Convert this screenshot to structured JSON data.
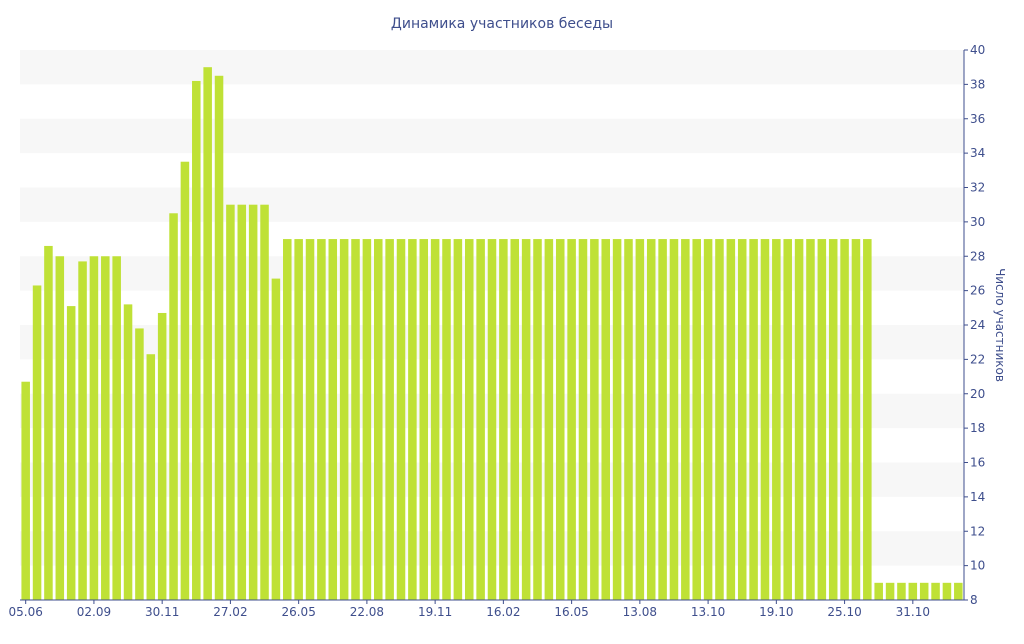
{
  "chart_data": {
    "type": "bar",
    "title": "Динамика участников беседы",
    "xlabel": "",
    "ylabel": "Число участников",
    "ylim": [
      8,
      40
    ],
    "yticks": [
      8,
      10,
      12,
      14,
      16,
      18,
      20,
      22,
      24,
      26,
      28,
      30,
      32,
      34,
      36,
      38,
      40
    ],
    "y_axis_side": "right",
    "grid": "alternating horizontal bands",
    "colors": {
      "bar": "#bfe136",
      "band": "#f7f7f7",
      "text": "#3e4e8c",
      "axis": "#3e4e8c"
    },
    "x_tick_labels": [
      {
        "label": "05.06",
        "index": 0
      },
      {
        "label": "02.09",
        "index": 6
      },
      {
        "label": "30.11",
        "index": 12
      },
      {
        "label": "27.02",
        "index": 18
      },
      {
        "label": "26.05",
        "index": 24
      },
      {
        "label": "22.08",
        "index": 30
      },
      {
        "label": "19.11",
        "index": 36
      },
      {
        "label": "16.02",
        "index": 42
      },
      {
        "label": "16.05",
        "index": 48
      },
      {
        "label": "13.08",
        "index": 54
      },
      {
        "label": "13.10",
        "index": 60
      },
      {
        "label": "19.10",
        "index": 66
      },
      {
        "label": "25.10",
        "index": 72
      },
      {
        "label": "31.10",
        "index": 78
      }
    ],
    "values": [
      20.7,
      26.3,
      28.6,
      28.0,
      25.1,
      27.7,
      28.0,
      28.0,
      28.0,
      25.2,
      23.8,
      22.3,
      24.7,
      30.5,
      33.5,
      38.2,
      39.0,
      38.5,
      31.0,
      31.0,
      31.0,
      31.0,
      26.7,
      29.0,
      29.0,
      29.0,
      29.0,
      29.0,
      29.0,
      29.0,
      29.0,
      29.0,
      29.0,
      29.0,
      29.0,
      29.0,
      29.0,
      29.0,
      29.0,
      29.0,
      29.0,
      29.0,
      29.0,
      29.0,
      29.0,
      29.0,
      29.0,
      29.0,
      29.0,
      29.0,
      29.0,
      29.0,
      29.0,
      29.0,
      29.0,
      29.0,
      29.0,
      29.0,
      29.0,
      29.0,
      29.0,
      29.0,
      29.0,
      29.0,
      29.0,
      29.0,
      29.0,
      29.0,
      29.0,
      29.0,
      29.0,
      29.0,
      29.0,
      29.0,
      29.0,
      9.0,
      9.0,
      9.0,
      9.0,
      9.0,
      9.0,
      9.0,
      9.0
    ]
  }
}
